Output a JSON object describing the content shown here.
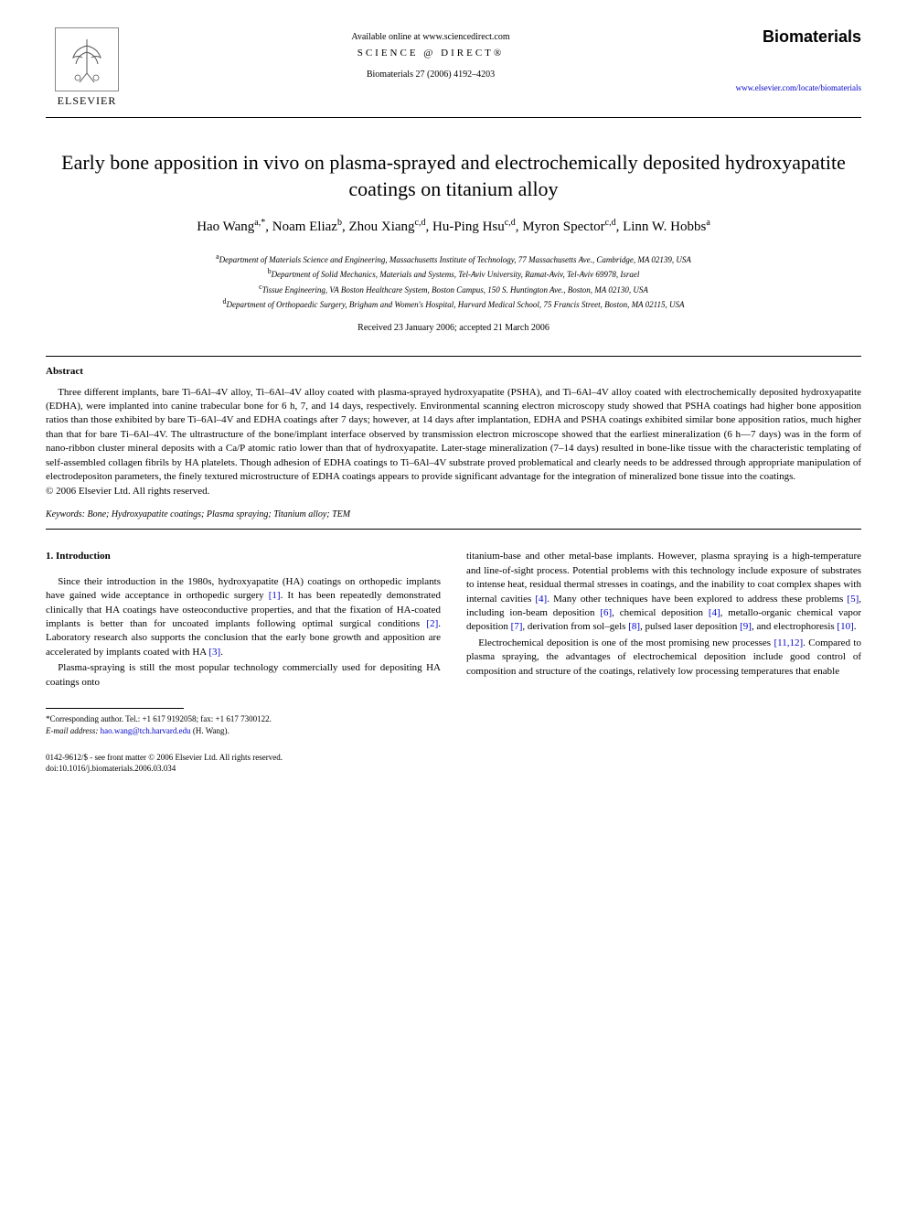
{
  "header": {
    "available_text": "Available online at www.sciencedirect.com",
    "sciencedirect": "SCIENCE @ DIRECT®",
    "citation": "Biomaterials 27 (2006) 4192–4203",
    "elsevier": "ELSEVIER",
    "journal_name": "Biomaterials",
    "journal_url": "www.elsevier.com/locate/biomaterials"
  },
  "title": "Early bone apposition in vivo on plasma-sprayed and electrochemically deposited hydroxyapatite coatings on titanium alloy",
  "authors_html": "Hao Wang<sup>a,*</sup>, Noam Eliaz<sup>b</sup>, Zhou Xiang<sup>c,d</sup>, Hu-Ping Hsu<sup>c,d</sup>, Myron Spector<sup>c,d</sup>, Linn W. Hobbs<sup>a</sup>",
  "affiliations": [
    "<sup>a</sup>Department of Materials Science and Engineering, Massachusetts Institute of Technology, 77 Massachusetts Ave., Cambridge, MA 02139, USA",
    "<sup>b</sup>Department of Solid Mechanics, Materials and Systems, Tel-Aviv University, Ramat-Aviv, Tel-Aviv 69978, Israel",
    "<sup>c</sup>Tissue Engineering, VA Boston Healthcare System, Boston Campus, 150 S. Huntington Ave., Boston, MA 02130, USA",
    "<sup>d</sup>Department of Orthopaedic Surgery, Brigham and Women's Hospital, Harvard Medical School, 75 Francis Street, Boston, MA 02115, USA"
  ],
  "dates": "Received 23 January 2006; accepted 21 March 2006",
  "abstract": {
    "heading": "Abstract",
    "body": "Three different implants, bare Ti–6Al–4V alloy, Ti–6Al–4V alloy coated with plasma-sprayed hydroxyapatite (PSHA), and Ti–6Al–4V alloy coated with electrochemically deposited hydroxyapatite (EDHA), were implanted into canine trabecular bone for 6 h, 7, and 14 days, respectively. Environmental scanning electron microscopy study showed that PSHA coatings had higher bone apposition ratios than those exhibited by bare Ti–6Al–4V and EDHA coatings after 7 days; however, at 14 days after implantation, EDHA and PSHA coatings exhibited similar bone apposition ratios, much higher than that for bare Ti–6Al–4V. The ultrastructure of the bone/implant interface observed by transmission electron microscope showed that the earliest mineralization (6 h—7 days) was in the form of nano-ribbon cluster mineral deposits with a Ca/P atomic ratio lower than that of hydroxyapatite. Later-stage mineralization (7–14 days) resulted in bone-like tissue with the characteristic templating of self-assembled collagen fibrils by HA platelets. Though adhesion of EDHA coatings to Ti–6Al–4V substrate proved problematical and clearly needs to be addressed through appropriate manipulation of electrodepositon parameters, the finely textured microstructure of EDHA coatings appears to provide significant advantage for the integration of mineralized bone tissue into the coatings.",
    "copyright": "© 2006 Elsevier Ltd. All rights reserved."
  },
  "keywords": "Keywords: Bone; Hydroxyapatite coatings; Plasma spraying; Titanium alloy; TEM",
  "intro": {
    "heading": "1. Introduction",
    "col1": [
      "Since their introduction in the 1980s, hydroxyapatite (HA) coatings on orthopedic implants have gained wide acceptance in orthopedic surgery <span class=\"ref-link\">[1]</span>. It has been repeatedly demonstrated clinically that HA coatings have osteoconductive properties, and that the fixation of HA-coated implants is better than for uncoated implants following optimal surgical conditions <span class=\"ref-link\">[2]</span>. Laboratory research also supports the conclusion that the early bone growth and apposition are accelerated by implants coated with HA <span class=\"ref-link\">[3]</span>.",
      "Plasma-spraying is still the most popular technology commercially used for depositing HA coatings onto"
    ],
    "col2": [
      "titanium-base and other metal-base implants. However, plasma spraying is a high-temperature and line-of-sight process. Potential problems with this technology include exposure of substrates to intense heat, residual thermal stresses in coatings, and the inability to coat complex shapes with internal cavities <span class=\"ref-link\">[4]</span>. Many other techniques have been explored to address these problems <span class=\"ref-link\">[5]</span>, including ion-beam deposition <span class=\"ref-link\">[6]</span>, chemical deposition <span class=\"ref-link\">[4]</span>, metallo-organic chemical vapor deposition <span class=\"ref-link\">[7]</span>, derivation from sol–gels <span class=\"ref-link\">[8]</span>, pulsed laser deposition <span class=\"ref-link\">[9]</span>, and electrophoresis <span class=\"ref-link\">[10]</span>.",
      "Electrochemical deposition is one of the most promising new processes <span class=\"ref-link\">[11,12]</span>. Compared to plasma spraying, the advantages of electrochemical deposition include good control of composition and structure of the coatings, relatively low processing temperatures that enable"
    ]
  },
  "footnote": {
    "corresponding": "*Corresponding author. Tel.: +1 617 9192058; fax: +1 617 7300122.",
    "email_label": "E-mail address:",
    "email": "hao.wang@tch.harvard.edu",
    "email_tail": "(H. Wang)."
  },
  "footer": {
    "line1": "0142-9612/$ - see front matter © 2006 Elsevier Ltd. All rights reserved.",
    "line2": "doi:10.1016/j.biomaterials.2006.03.034"
  }
}
